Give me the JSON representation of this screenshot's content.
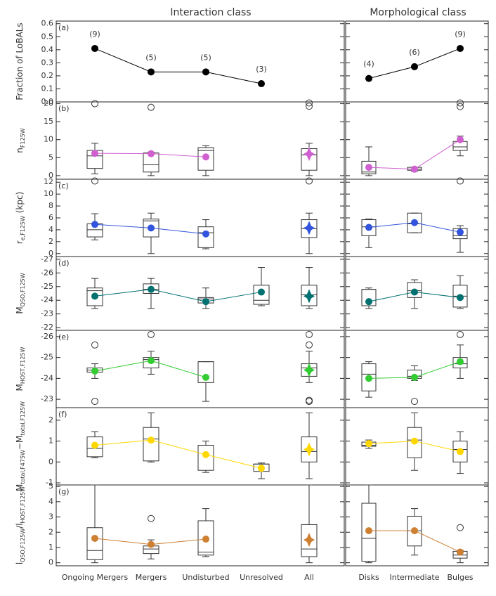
{
  "columns": [
    {
      "title": "Interaction class",
      "categories": [
        "Ongoing Mergers",
        "Mergers",
        "Undisturbed",
        "Unresolved",
        "All"
      ]
    },
    {
      "title": "Morphological class",
      "categories": [
        "Disks",
        "Intermediate",
        "Bulges"
      ]
    }
  ],
  "chart_data": [
    {
      "type": "line",
      "label": "(a)",
      "ylabel": [
        [
          "Fraction of LoBALs"
        ]
      ],
      "color": "#000000",
      "ylim": [
        0,
        0.62
      ],
      "yticks": [
        {
          "value": 0,
          "label": "0.0"
        },
        0.1,
        0.2,
        0.3,
        0.4,
        0.5,
        0.6
      ],
      "left": {
        "values": [
          0.41,
          0.23,
          0.23,
          0.14,
          null
        ],
        "labels": [
          "(9)",
          "(5)",
          "(5)",
          "(3)",
          null
        ]
      },
      "right": {
        "values": [
          0.18,
          0.27,
          0.41
        ],
        "labels": [
          "(4)",
          "(6)",
          "(9)"
        ]
      }
    },
    {
      "type": "box",
      "label": "(b)",
      "ylabel": [
        [
          "n",
          "F125W"
        ]
      ],
      "color": "#d060d0",
      "ylim": [
        -1,
        20.5
      ],
      "yticks": [
        0,
        5,
        10,
        15,
        20
      ],
      "left": [
        {
          "box": [
            0.5,
            2,
            5.5,
            7,
            9
          ],
          "mean": 6.2,
          "outliers": [
            20
          ]
        },
        {
          "box": [
            0,
            1,
            3,
            6.3,
            6.5
          ],
          "mean": 6.1,
          "outliers": [
            19
          ]
        },
        {
          "box": [
            0,
            1.5,
            7,
            7.8,
            8.3
          ],
          "mean": 5.2
        },
        null,
        {
          "box": [
            0,
            1.5,
            5.8,
            7.5,
            9
          ],
          "mean": 6,
          "outliers": [
            19.3,
            20.2
          ]
        }
      ],
      "right": [
        {
          "box": [
            0,
            0.5,
            1,
            4,
            8
          ],
          "mean": 2.3
        },
        {
          "box": [
            1.2,
            1.5,
            1.8,
            2.3,
            2.3
          ],
          "mean": 1.8
        },
        {
          "box": [
            5.5,
            7,
            8,
            9.5,
            11
          ],
          "mean": 10,
          "outliers": [
            19.2,
            20.2
          ]
        }
      ]
    },
    {
      "type": "box",
      "label": "(c)",
      "ylabel": [
        [
          "r",
          "e,F125W"
        ]
      ],
      "ylabel_unit": "(kpc)",
      "color": "#3355dd",
      "ylim": [
        -0.5,
        12.5
      ],
      "yticks": [
        0,
        2,
        4,
        6,
        8,
        10,
        12
      ],
      "left": [
        {
          "box": [
            2.3,
            2.8,
            4,
            5,
            6.7
          ],
          "mean": 4.9,
          "outliers": [
            12.2
          ]
        },
        {
          "box": [
            0,
            2.8,
            5.5,
            5.8,
            6.8
          ],
          "mean": 4.3
        },
        {
          "box": [
            0.8,
            1,
            3.5,
            4.5,
            5.7
          ],
          "mean": 3.3
        },
        null,
        {
          "box": [
            0,
            2.7,
            4.2,
            5.7,
            6.8
          ],
          "mean": 4.3,
          "outliers": [
            12.2
          ]
        }
      ],
      "right": [
        {
          "box": [
            1,
            3,
            4.5,
            5.7,
            5.8
          ],
          "mean": 4.4
        },
        {
          "box": [
            3.5,
            3.5,
            5,
            6.8,
            6.8
          ],
          "mean": 5.2
        },
        {
          "box": [
            0.2,
            2.5,
            3,
            4.2,
            4.7
          ],
          "mean": 3.6,
          "outliers": [
            12.2
          ]
        }
      ]
    },
    {
      "type": "box",
      "label": "(d)",
      "ylabel": [
        [
          "M",
          "QSO,F125W"
        ]
      ],
      "color": "#007070",
      "ylim": [
        -21.8,
        -27.2
      ],
      "yticks": [
        -22,
        -23,
        -24,
        -25,
        -26,
        -27
      ],
      "left": [
        {
          "box": [
            -23.4,
            -23.6,
            -24.7,
            -24.9,
            -25.6
          ],
          "mean": -24.3
        },
        {
          "box": [
            -23.4,
            -24.5,
            -24.8,
            -25.2,
            -25.6
          ],
          "mean": -24.8
        },
        {
          "box": [
            -23.4,
            -23.8,
            -24.1,
            -24.2,
            -24.9
          ],
          "mean": -23.9
        },
        {
          "box": [
            -23.6,
            -23.7,
            -24.0,
            -25.1,
            -26.4
          ],
          "mean": -24.6
        },
        {
          "box": [
            -23.4,
            -23.6,
            -24.4,
            -25.1,
            -26.4
          ],
          "mean": -24.3
        }
      ],
      "right": [
        {
          "box": [
            -23.4,
            -23.6,
            -24.8,
            -24.8,
            -24.9
          ],
          "mean": -23.9
        },
        {
          "box": [
            -23.4,
            -24.2,
            -24.7,
            -25.3,
            -25.5
          ],
          "mean": -24.6
        },
        {
          "box": [
            -23.4,
            -23.5,
            -24.3,
            -25.1,
            -25.8
          ],
          "mean": -24.2
        }
      ]
    },
    {
      "type": "box",
      "label": "(e)",
      "ylabel": [
        [
          "M",
          "HOST,F125W"
        ]
      ],
      "color": "#33cc33",
      "ylim": [
        -22.6,
        -26.3
      ],
      "yticks": [
        -23,
        -24,
        -25,
        -26
      ],
      "left": [
        {
          "box": [
            -24.0,
            -24.3,
            -24.4,
            -24.5,
            -24.7
          ],
          "mean": -24.35,
          "outliers": [
            -25.6,
            -22.9
          ]
        },
        {
          "box": [
            -24.2,
            -24.5,
            -24.9,
            -25.0,
            -25.3
          ],
          "mean": -24.85,
          "outliers": [
            -26.1
          ]
        },
        {
          "box": [
            -22.9,
            -23.8,
            -24.8,
            -24.8,
            -24.8
          ],
          "mean": -24.05
        },
        null,
        {
          "box": [
            -23.8,
            -24.1,
            -24.5,
            -24.7,
            -25.3
          ],
          "mean": -24.4,
          "outliers": [
            -26.1,
            -25.6,
            -22.95,
            -22.9
          ]
        }
      ],
      "right": [
        {
          "box": [
            -23.1,
            -23.4,
            -24.2,
            -24.7,
            -24.8
          ],
          "mean": -24.0
        },
        {
          "box": [
            -23.9,
            -24.0,
            -24.1,
            -24.4,
            -24.6
          ],
          "mean": -24.05,
          "outliers": [
            -22.9
          ]
        },
        {
          "box": [
            -24.0,
            -24.5,
            -24.7,
            -25.0,
            -25.6
          ],
          "mean": -24.8,
          "outliers": [
            -26.1
          ]
        }
      ]
    },
    {
      "type": "box",
      "label": "(f)",
      "ylabel": [
        [
          "M",
          "total,F475W"
        ],
        [
          "−M",
          "total,F125W"
        ]
      ],
      "color": "#ffd700",
      "ylim": [
        -1.1,
        2.6
      ],
      "yticks": [
        -1,
        0,
        1,
        2
      ],
      "left": [
        {
          "box": [
            0.2,
            0.25,
            0.65,
            1.2,
            1.45
          ],
          "mean": 0.8
        },
        {
          "box": [
            0,
            0.05,
            1.1,
            1.65,
            2.35
          ],
          "mean": 1.05
        },
        {
          "box": [
            -0.5,
            -0.4,
            0.8,
            0.8,
            1.0
          ],
          "mean": 0.35
        },
        {
          "box": [
            -0.8,
            -0.45,
            -0.1,
            -0.1,
            -0.05
          ],
          "mean": -0.3
        },
        {
          "box": [
            -0.8,
            0,
            0.5,
            1.2,
            2.35
          ],
          "mean": 0.6
        }
      ],
      "right": [
        {
          "box": [
            0.65,
            0.75,
            0.8,
            0.95,
            1.05
          ],
          "mean": 0.88
        },
        {
          "box": [
            -0.4,
            0.2,
            1.05,
            1.65,
            2.35
          ],
          "mean": 1.0
        },
        {
          "box": [
            -0.55,
            0,
            0.6,
            1.0,
            1.45
          ],
          "mean": 0.5
        }
      ]
    },
    {
      "type": "box",
      "label": "(g)",
      "ylabel": [
        [
          "l",
          "QSO,F125W"
        ],
        [
          "/l",
          "HOST,F125W"
        ]
      ],
      "color": "#cd7f32",
      "ylim": [
        -0.2,
        5.1
      ],
      "yticks": [
        0,
        1,
        2,
        3,
        4,
        5
      ],
      "left": [
        {
          "box": [
            0,
            0.2,
            0.8,
            2.3,
            5.1
          ],
          "mean": 1.6
        },
        {
          "box": [
            0.25,
            0.6,
            0.9,
            1.1,
            1.5
          ],
          "mean": 1.2,
          "outliers": [
            2.9
          ]
        },
        {
          "box": [
            0.4,
            0.5,
            0.7,
            2.75,
            3.55
          ],
          "mean": 1.55
        },
        null,
        {
          "box": [
            0,
            0.4,
            0.9,
            2.5,
            5.1
          ],
          "mean": 1.5
        }
      ],
      "right": [
        {
          "box": [
            0,
            0.1,
            1.6,
            3.9,
            5.1
          ],
          "mean": 2.1
        },
        {
          "box": [
            0.5,
            1.1,
            2.1,
            3.05,
            3.55
          ],
          "mean": 2.1
        },
        {
          "box": [
            0,
            0.3,
            0.5,
            0.75,
            0.8
          ],
          "mean": 0.7,
          "outliers": [
            2.3
          ]
        }
      ]
    }
  ]
}
